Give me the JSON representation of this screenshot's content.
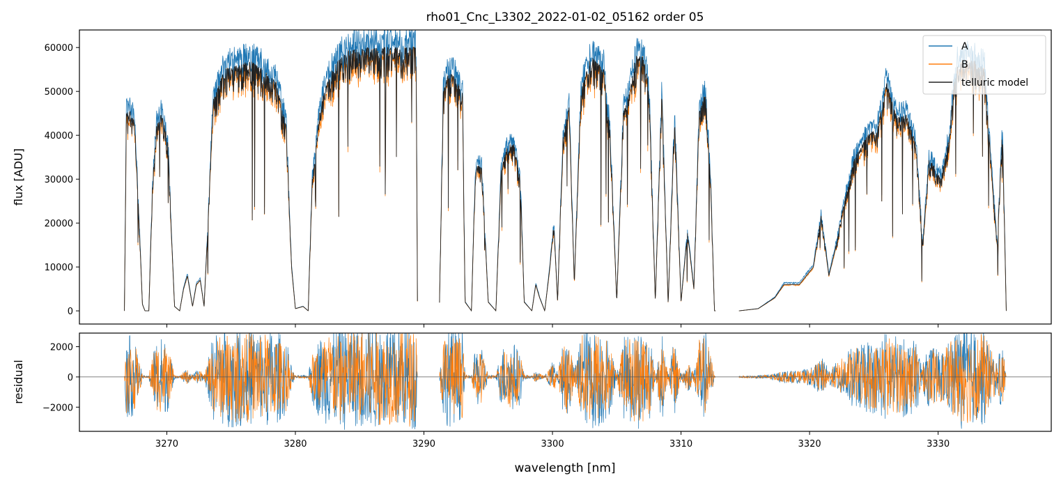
{
  "figure": {
    "title": "rho01_Cnc_L3302_2022-01-02_05162  order 05"
  },
  "chart_data": [
    {
      "type": "line",
      "panel": "top",
      "xlabel": "",
      "ylabel": "flux [ADU]",
      "xlim": [
        3263.2,
        3338.8
      ],
      "ylim": [
        -3000,
        64000
      ],
      "xticks": [
        3270,
        3280,
        3290,
        3300,
        3310,
        3320,
        3330
      ],
      "yticks": [
        0,
        10000,
        20000,
        30000,
        40000,
        50000,
        60000
      ],
      "ytick_labels": [
        "0",
        "10000",
        "20000",
        "30000",
        "40000",
        "50000",
        "60000"
      ],
      "xtick_labels_visible": false,
      "legend": {
        "placement": "top-right",
        "entries": [
          "A",
          "B",
          "telluric model"
        ]
      },
      "series": [
        {
          "name": "A",
          "color": "#1f77b4",
          "scale": 1.06
        },
        {
          "name": "B",
          "color": "#ff7f0e",
          "scale": 0.98
        },
        {
          "name": "telluric model",
          "color": "#222222",
          "scale": 1.0
        }
      ],
      "gaps": [
        [
          3289.5,
          3291.2
        ],
        [
          3312.7,
          3314.5
        ]
      ],
      "x_range": [
        3266.7,
        3335.3
      ],
      "envelope": [
        [
          3266.7,
          0
        ],
        [
          3266.85,
          45000
        ],
        [
          3267.1,
          46000
        ],
        [
          3267.5,
          43000
        ],
        [
          3267.85,
          20000
        ],
        [
          3268.1,
          1500
        ],
        [
          3268.3,
          0
        ],
        [
          3268.6,
          0
        ],
        [
          3268.9,
          30000
        ],
        [
          3269.2,
          42000
        ],
        [
          3269.5,
          45000
        ],
        [
          3269.8,
          43000
        ],
        [
          3270.1,
          38000
        ],
        [
          3270.35,
          18000
        ],
        [
          3270.6,
          1000
        ],
        [
          3271.0,
          0
        ],
        [
          3271.3,
          5000
        ],
        [
          3271.6,
          8000
        ],
        [
          3272.0,
          1000
        ],
        [
          3272.3,
          6000
        ],
        [
          3272.6,
          7000
        ],
        [
          3272.9,
          1000
        ],
        [
          3273.2,
          20000
        ],
        [
          3273.6,
          48000
        ],
        [
          3274.5,
          55000
        ],
        [
          3275.5,
          56000
        ],
        [
          3276.5,
          57000
        ],
        [
          3277.5,
          55000
        ],
        [
          3278.5,
          52000
        ],
        [
          3279.3,
          42000
        ],
        [
          3279.7,
          10000
        ],
        [
          3280.0,
          500
        ],
        [
          3280.6,
          1000
        ],
        [
          3281.0,
          0
        ],
        [
          3281.3,
          30000
        ],
        [
          3282.0,
          48000
        ],
        [
          3283.0,
          56000
        ],
        [
          3284.0,
          59000
        ],
        [
          3285.0,
          60000
        ],
        [
          3286.5,
          60000
        ],
        [
          3288.0,
          60000
        ],
        [
          3289.4,
          60000
        ],
        [
          3289.5,
          0
        ],
        [
          3291.2,
          0
        ],
        [
          3291.5,
          50000
        ],
        [
          3292.0,
          55000
        ],
        [
          3292.6,
          52000
        ],
        [
          3293.0,
          50000
        ],
        [
          3293.2,
          2000
        ],
        [
          3293.7,
          0
        ],
        [
          3294.0,
          33000
        ],
        [
          3294.5,
          33000
        ],
        [
          3295.0,
          2000
        ],
        [
          3295.6,
          0
        ],
        [
          3296.0,
          32000
        ],
        [
          3296.5,
          38000
        ],
        [
          3297.0,
          38000
        ],
        [
          3297.5,
          30000
        ],
        [
          3297.8,
          2000
        ],
        [
          3298.4,
          0
        ],
        [
          3298.7,
          6000
        ],
        [
          3299.0,
          3000
        ],
        [
          3299.4,
          0
        ],
        [
          3299.8,
          10000
        ],
        [
          3300.1,
          20000
        ],
        [
          3300.4,
          2000
        ],
        [
          3300.8,
          40000
        ],
        [
          3301.3,
          47000
        ],
        [
          3301.7,
          6000
        ],
        [
          3302.2,
          50000
        ],
        [
          3303.0,
          58000
        ],
        [
          3304.0,
          55000
        ],
        [
          3304.5,
          40000
        ],
        [
          3305.0,
          2000
        ],
        [
          3305.5,
          45000
        ],
        [
          3306.0,
          50000
        ],
        [
          3306.5,
          58000
        ],
        [
          3307.0,
          58000
        ],
        [
          3307.5,
          52000
        ],
        [
          3308.0,
          2000
        ],
        [
          3308.5,
          50000
        ],
        [
          3309.0,
          1500
        ],
        [
          3309.5,
          45000
        ],
        [
          3310.0,
          2000
        ],
        [
          3310.5,
          18000
        ],
        [
          3311.0,
          5000
        ],
        [
          3311.4,
          45000
        ],
        [
          3311.9,
          50000
        ],
        [
          3312.3,
          30000
        ],
        [
          3312.6,
          0
        ],
        [
          3314.5,
          0
        ],
        [
          3316.0,
          500
        ],
        [
          3317.3,
          3000
        ],
        [
          3318.0,
          6000
        ],
        [
          3319.2,
          6000
        ],
        [
          3320.3,
          10000
        ],
        [
          3320.9,
          22000
        ],
        [
          3321.5,
          8000
        ],
        [
          3322.0,
          14000
        ],
        [
          3322.5,
          22000
        ],
        [
          3323.5,
          35000
        ],
        [
          3324.5,
          40000
        ],
        [
          3325.3,
          42000
        ],
        [
          3326.0,
          52000
        ],
        [
          3326.8,
          44000
        ],
        [
          3327.5,
          45000
        ],
        [
          3328.3,
          38000
        ],
        [
          3328.8,
          15000
        ],
        [
          3329.3,
          35000
        ],
        [
          3330.2,
          30000
        ],
        [
          3330.9,
          40000
        ],
        [
          3331.3,
          55000
        ],
        [
          3332.0,
          57000
        ],
        [
          3333.0,
          57000
        ],
        [
          3333.6,
          55000
        ],
        [
          3334.2,
          30000
        ],
        [
          3334.6,
          15000
        ],
        [
          3335.0,
          42000
        ],
        [
          3335.3,
          0
        ]
      ]
    },
    {
      "type": "line",
      "panel": "bottom",
      "xlabel": "wavelength [nm]",
      "ylabel": "residual",
      "xlim": [
        3263.2,
        3338.8
      ],
      "ylim": [
        -3600,
        2900
      ],
      "xticks": [
        3270,
        3280,
        3290,
        3300,
        3310,
        3320,
        3330
      ],
      "xtick_labels": [
        "3270",
        "3280",
        "3290",
        "3300",
        "3310",
        "3320",
        "3330"
      ],
      "yticks": [
        -2000,
        0,
        2000
      ],
      "ytick_labels": [
        "−2000",
        "0",
        "2000"
      ],
      "zero_line": true,
      "series": [
        {
          "name": "A",
          "color": "#1f77b4"
        },
        {
          "name": "B",
          "color": "#ff7f0e"
        }
      ]
    }
  ]
}
